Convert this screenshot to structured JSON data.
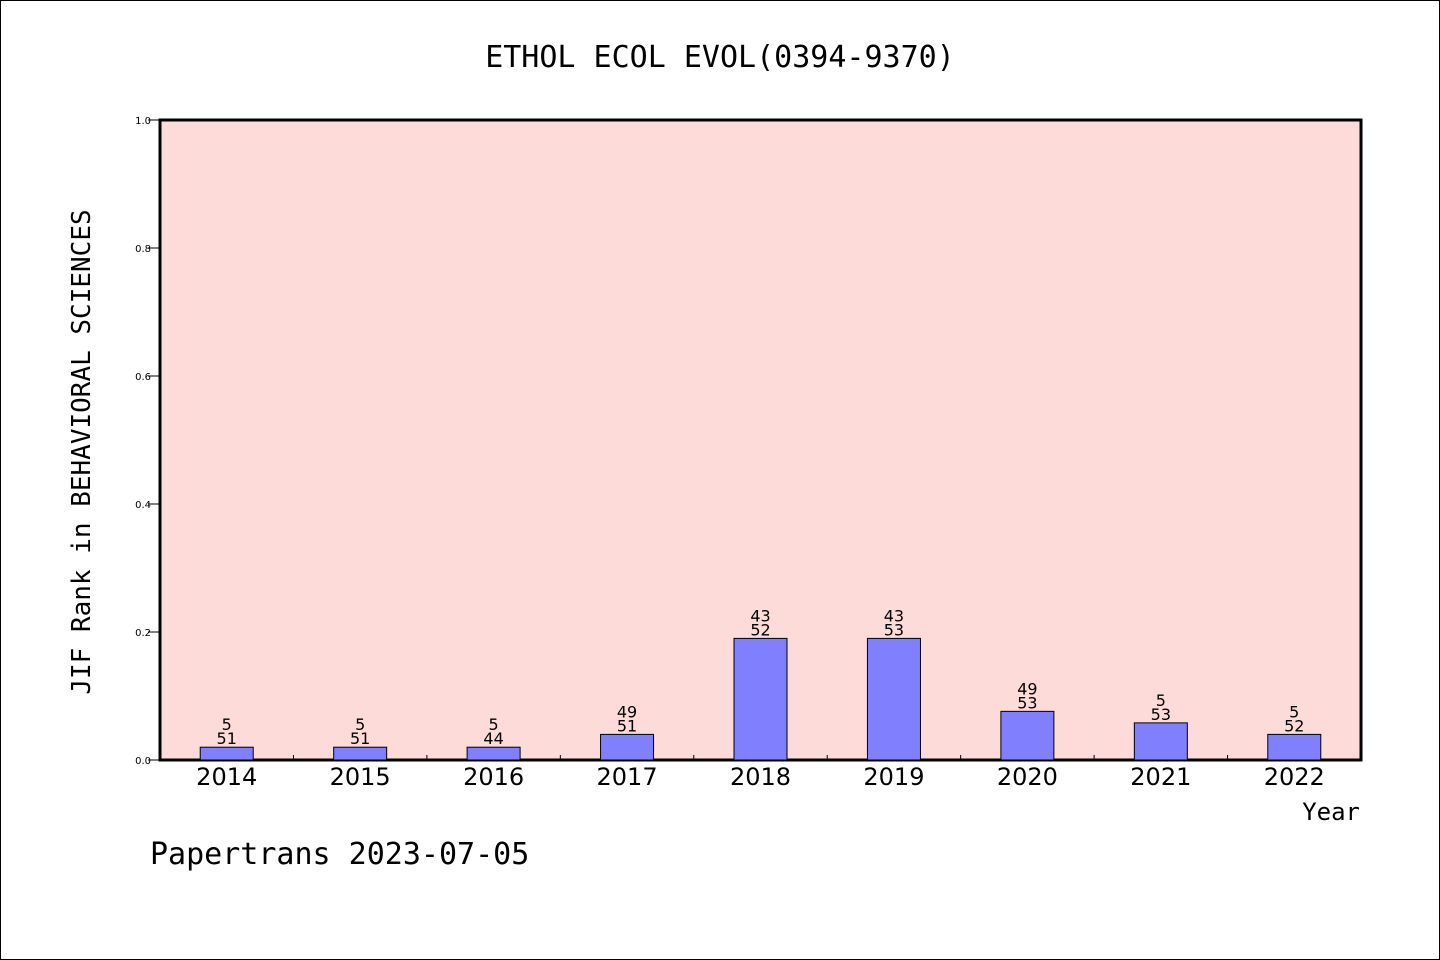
{
  "chart_data": {
    "type": "bar",
    "title": "ETHOL ECOL EVOL(0394-9370)",
    "xlabel": "Year",
    "ylabel": "JIF Rank in BEHAVIORAL SCIENCES",
    "ylim": [
      0,
      1.0
    ],
    "yticks": [
      "0.0",
      "0.2",
      "0.4",
      "0.6",
      "0.8",
      "1.0"
    ],
    "categories": [
      "2014",
      "2015",
      "2016",
      "2017",
      "2018",
      "2019",
      "2020",
      "2021",
      "2022"
    ],
    "values": [
      0.02,
      0.02,
      0.02,
      0.04,
      0.19,
      0.19,
      0.076,
      0.058,
      0.04
    ],
    "labels_top": [
      "5",
      "5",
      "5",
      "49",
      "43",
      "43",
      "49",
      "5",
      "5"
    ],
    "labels_bottom": [
      "51",
      "51",
      "44",
      "51",
      "52",
      "53",
      "53",
      "53",
      "52"
    ],
    "grid": false,
    "colors": {
      "plot_background": "#fddbd8",
      "bar_fill": "#8080ff",
      "bar_stroke": "#000000"
    }
  },
  "footer": "Papertrans 2023-07-05"
}
